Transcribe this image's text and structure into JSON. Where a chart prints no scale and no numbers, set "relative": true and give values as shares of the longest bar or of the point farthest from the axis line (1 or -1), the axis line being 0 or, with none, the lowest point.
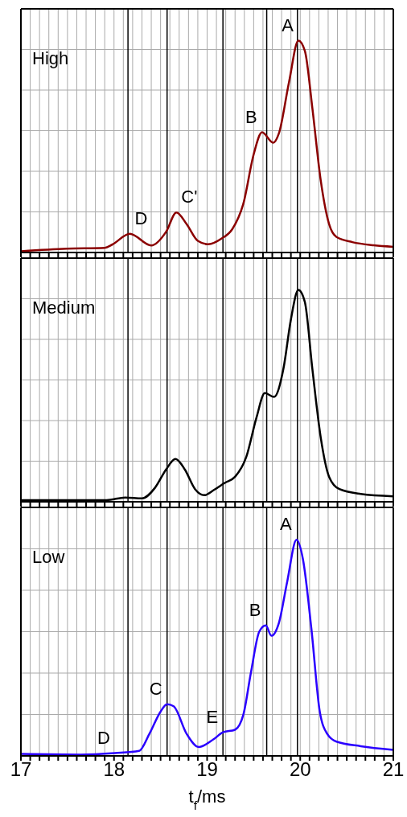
{
  "chart_data": [
    {
      "type": "line",
      "relative": true,
      "xlim": [
        17,
        21
      ],
      "xticks": [
        17,
        {
          "value": 17.1,
          "label": null
        },
        {
          "value": 17.2,
          "label": null
        },
        {
          "value": 17.3,
          "label": null
        },
        {
          "value": 17.4,
          "label": null
        },
        {
          "value": 17.5,
          "label": null
        },
        {
          "value": 17.6,
          "label": null
        },
        {
          "value": 17.7,
          "label": null
        },
        {
          "value": 17.8,
          "label": null
        },
        {
          "value": 17.9,
          "label": null
        },
        18,
        {
          "value": 18.1,
          "label": null
        },
        {
          "value": 18.2,
          "label": null
        },
        {
          "value": 18.3,
          "label": null
        },
        {
          "value": 18.4,
          "label": null
        },
        {
          "value": 18.5,
          "label": null
        },
        {
          "value": 18.6,
          "label": null
        },
        {
          "value": 18.7,
          "label": null
        },
        {
          "value": 18.8,
          "label": null
        },
        {
          "value": 18.9,
          "label": null
        },
        19,
        {
          "value": 19.1,
          "label": null
        },
        {
          "value": 19.2,
          "label": null
        },
        {
          "value": 19.3,
          "label": null
        },
        {
          "value": 19.4,
          "label": null
        },
        {
          "value": 19.5,
          "label": null
        },
        {
          "value": 19.6,
          "label": null
        },
        {
          "value": 19.7,
          "label": null
        },
        {
          "value": 19.8,
          "label": null
        },
        {
          "value": 19.9,
          "label": null
        },
        20,
        {
          "value": 20.1,
          "label": null
        },
        {
          "value": 20.2,
          "label": null
        },
        {
          "value": 20.3,
          "label": null
        },
        {
          "value": 20.4,
          "label": null
        },
        {
          "value": 20.5,
          "label": null
        },
        {
          "value": 20.6,
          "label": null
        },
        {
          "value": 20.7,
          "label": null
        },
        {
          "value": 20.8,
          "label": null
        },
        {
          "value": 20.9,
          "label": null
        },
        21
      ],
      "tick_labels": false,
      "grid": true,
      "legend": false,
      "marker": "none",
      "line_style": "solid",
      "series": [
        {
          "color": "#8b0000",
          "x": [
            17,
            17.49,
            17.9,
            17.98,
            18.17,
            18.4,
            18.56,
            18.67,
            18.78,
            18.9,
            19.01,
            19.16,
            19.27,
            19.39,
            19.5,
            19.59,
            19.71,
            19.77,
            19.88,
            19.98,
            20.05,
            20.13,
            20.22,
            20.31,
            20.39,
            20.56,
            20.79,
            21
          ],
          "values": [
            0.006,
            0.018,
            0.022,
            0.037,
            0.088,
            0.033,
            0.098,
            0.189,
            0.134,
            0.055,
            0.039,
            0.067,
            0.11,
            0.232,
            0.463,
            0.567,
            0.518,
            0.561,
            0.805,
            1,
            0.951,
            0.683,
            0.341,
            0.134,
            0.073,
            0.049,
            0.034,
            0.027
          ]
        }
      ],
      "ref_lines": [
        {
          "axis": "x",
          "value": 18.15,
          "color": "#000000"
        },
        {
          "axis": "x",
          "value": 18.57,
          "color": "#000000"
        },
        {
          "axis": "x",
          "value": 19.17,
          "color": "#000000"
        },
        {
          "axis": "x",
          "value": 19.64,
          "color": "#000000"
        },
        {
          "axis": "x",
          "value": 19.97,
          "color": "#000000"
        }
      ],
      "annotations": [
        "High",
        {
          "text": "A",
          "x": 19.98,
          "y": 1
        },
        {
          "text": "B",
          "x": 19.59,
          "y": 0.567
        },
        {
          "text": "C'",
          "x": 18.67,
          "y": 0.189
        },
        {
          "text": "D",
          "x": 18.17,
          "y": 0.088
        }
      ]
    },
    {
      "type": "line",
      "relative": true,
      "xlim": [
        17,
        21
      ],
      "xticks": [
        17,
        {
          "value": 17.1,
          "label": null
        },
        {
          "value": 17.2,
          "label": null
        },
        {
          "value": 17.3,
          "label": null
        },
        {
          "value": 17.4,
          "label": null
        },
        {
          "value": 17.5,
          "label": null
        },
        {
          "value": 17.6,
          "label": null
        },
        {
          "value": 17.7,
          "label": null
        },
        {
          "value": 17.8,
          "label": null
        },
        {
          "value": 17.9,
          "label": null
        },
        18,
        {
          "value": 18.1,
          "label": null
        },
        {
          "value": 18.2,
          "label": null
        },
        {
          "value": 18.3,
          "label": null
        },
        {
          "value": 18.4,
          "label": null
        },
        {
          "value": 18.5,
          "label": null
        },
        {
          "value": 18.6,
          "label": null
        },
        {
          "value": 18.7,
          "label": null
        },
        {
          "value": 18.8,
          "label": null
        },
        {
          "value": 18.9,
          "label": null
        },
        19,
        {
          "value": 19.1,
          "label": null
        },
        {
          "value": 19.2,
          "label": null
        },
        {
          "value": 19.3,
          "label": null
        },
        {
          "value": 19.4,
          "label": null
        },
        {
          "value": 19.5,
          "label": null
        },
        {
          "value": 19.6,
          "label": null
        },
        {
          "value": 19.7,
          "label": null
        },
        {
          "value": 19.8,
          "label": null
        },
        {
          "value": 19.9,
          "label": null
        },
        20,
        {
          "value": 20.1,
          "label": null
        },
        {
          "value": 20.2,
          "label": null
        },
        {
          "value": 20.3,
          "label": null
        },
        {
          "value": 20.4,
          "label": null
        },
        {
          "value": 20.5,
          "label": null
        },
        {
          "value": 20.6,
          "label": null
        },
        {
          "value": 20.7,
          "label": null
        },
        {
          "value": 20.8,
          "label": null
        },
        {
          "value": 20.9,
          "label": null
        },
        21
      ],
      "tick_labels": false,
      "grid": true,
      "legend": false,
      "marker": "none",
      "line_style": "solid",
      "series": [
        {
          "color": "#000000",
          "x": [
            17,
            17.92,
            18.12,
            18.3,
            18.44,
            18.56,
            18.66,
            18.76,
            18.87,
            18.97,
            19.07,
            19.19,
            19.3,
            19.42,
            19.53,
            19.62,
            19.72,
            19.82,
            19.9,
            19.98,
            20.05,
            20.13,
            20.22,
            20.31,
            20.42,
            20.65,
            21
          ],
          "values": [
            0.008,
            0.008,
            0.02,
            0.016,
            0.066,
            0.153,
            0.202,
            0.153,
            0.06,
            0.031,
            0.055,
            0.089,
            0.118,
            0.211,
            0.397,
            0.513,
            0.495,
            0.629,
            0.861,
            1,
            0.942,
            0.629,
            0.304,
            0.118,
            0.06,
            0.037,
            0.026
          ]
        }
      ],
      "ref_lines": [
        {
          "axis": "x",
          "value": 18.15,
          "color": "#000000"
        },
        {
          "axis": "x",
          "value": 18.57,
          "color": "#000000"
        },
        {
          "axis": "x",
          "value": 19.17,
          "color": "#000000"
        },
        {
          "axis": "x",
          "value": 19.64,
          "color": "#000000"
        },
        {
          "axis": "x",
          "value": 19.97,
          "color": "#000000"
        }
      ],
      "annotations": [
        "Medium"
      ]
    },
    {
      "type": "line",
      "relative": true,
      "xlim": [
        17,
        21
      ],
      "xticks": [
        17,
        {
          "value": 17.1,
          "label": null
        },
        {
          "value": 17.2,
          "label": null
        },
        {
          "value": 17.3,
          "label": null
        },
        {
          "value": 17.4,
          "label": null
        },
        {
          "value": 17.5,
          "label": null
        },
        {
          "value": 17.6,
          "label": null
        },
        {
          "value": 17.7,
          "label": null
        },
        {
          "value": 17.8,
          "label": null
        },
        {
          "value": 17.9,
          "label": null
        },
        18,
        {
          "value": 18.1,
          "label": null
        },
        {
          "value": 18.2,
          "label": null
        },
        {
          "value": 18.3,
          "label": null
        },
        {
          "value": 18.4,
          "label": null
        },
        {
          "value": 18.5,
          "label": null
        },
        {
          "value": 18.6,
          "label": null
        },
        {
          "value": 18.7,
          "label": null
        },
        {
          "value": 18.8,
          "label": null
        },
        {
          "value": 18.9,
          "label": null
        },
        19,
        {
          "value": 19.1,
          "label": null
        },
        {
          "value": 19.2,
          "label": null
        },
        {
          "value": 19.3,
          "label": null
        },
        {
          "value": 19.4,
          "label": null
        },
        {
          "value": 19.5,
          "label": null
        },
        {
          "value": 19.6,
          "label": null
        },
        {
          "value": 19.7,
          "label": null
        },
        {
          "value": 19.8,
          "label": null
        },
        {
          "value": 19.9,
          "label": null
        },
        20,
        {
          "value": 20.1,
          "label": null
        },
        {
          "value": 20.2,
          "label": null
        },
        {
          "value": 20.3,
          "label": null
        },
        {
          "value": 20.4,
          "label": null
        },
        {
          "value": 20.5,
          "label": null
        },
        {
          "value": 20.6,
          "label": null
        },
        {
          "value": 20.7,
          "label": null
        },
        {
          "value": 20.8,
          "label": null
        },
        {
          "value": 20.9,
          "label": null
        },
        21
      ],
      "tick_labels": "x",
      "xlabel": "t$_{f}$/ms",
      "grid": true,
      "legend": false,
      "marker": "none",
      "line_style": "solid",
      "series": [
        {
          "color": "#2a00ff",
          "x": [
            17,
            17.64,
            18.01,
            18.27,
            18.38,
            18.5,
            18.57,
            18.64,
            18.78,
            18.91,
            19.07,
            19.17,
            19.3,
            19.39,
            19.47,
            19.56,
            19.63,
            19.69,
            19.77,
            19.86,
            19.96,
            20.03,
            20.12,
            20.21,
            20.29,
            20.39,
            20.65,
            21
          ],
          "values": [
            0.009,
            0.006,
            0.013,
            0.023,
            0.102,
            0.205,
            0.239,
            0.23,
            0.102,
            0.041,
            0.077,
            0.109,
            0.121,
            0.192,
            0.384,
            0.575,
            0.604,
            0.556,
            0.614,
            0.806,
            1,
            0.908,
            0.588,
            0.205,
            0.102,
            0.066,
            0.045,
            0.028
          ]
        }
      ],
      "ref_lines": [
        {
          "axis": "x",
          "value": 18.15,
          "color": "#000000"
        },
        {
          "axis": "x",
          "value": 18.57,
          "color": "#000000"
        },
        {
          "axis": "x",
          "value": 19.17,
          "color": "#000000"
        },
        {
          "axis": "x",
          "value": 19.64,
          "color": "#000000"
        },
        {
          "axis": "x",
          "value": 19.97,
          "color": "#000000"
        }
      ],
      "annotations": [
        "Low",
        {
          "text": "A",
          "x": 19.96,
          "y": 1
        },
        {
          "text": "B",
          "x": 19.63,
          "y": 0.604
        },
        {
          "text": "C",
          "x": 18.57,
          "y": 0.239
        },
        {
          "text": "E",
          "x": 19.17,
          "y": 0.109
        },
        {
          "text": "D",
          "x": 18.01,
          "y": 0.013
        }
      ]
    }
  ]
}
